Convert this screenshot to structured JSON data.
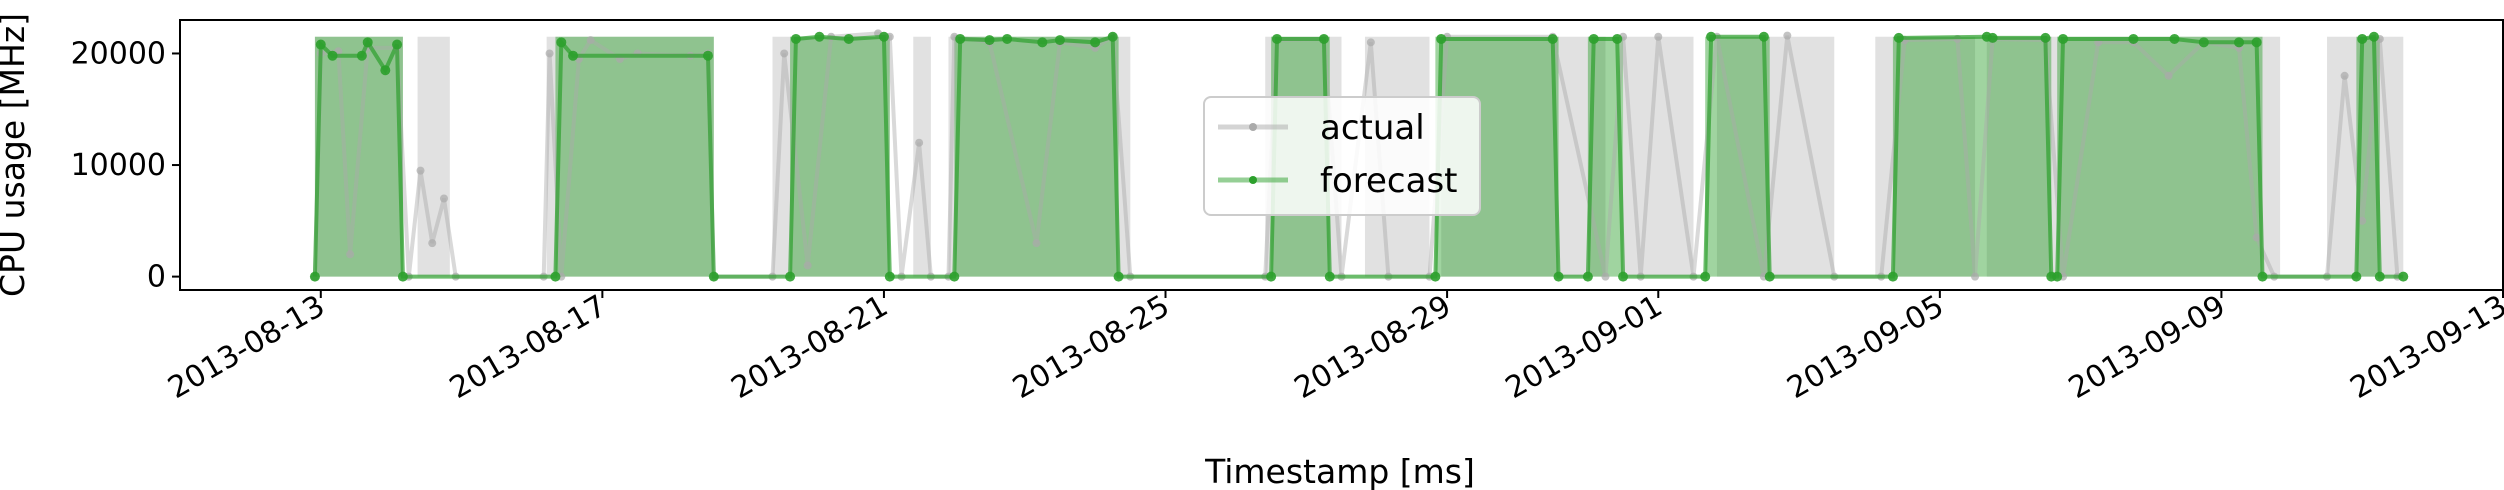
{
  "chart_data": {
    "type": "line",
    "title": "",
    "xlabel": "Timestamp [ms]",
    "ylabel": "CPU usage [MHz]",
    "ylim": [
      -1200,
      23000
    ],
    "xlim": [
      "2013-08-11T00:00",
      "2013-09-13T00:00"
    ],
    "yticks": [
      0,
      10000,
      20000
    ],
    "ytick_labels": [
      "0",
      "10000",
      "20000"
    ],
    "xtick_labels": [
      "2013-08-13",
      "2013-08-17",
      "2013-08-21",
      "2013-08-25",
      "2013-08-29",
      "2013-09-01",
      "2013-09-05",
      "2013-09-09",
      "2013-09-13"
    ],
    "xticks": [
      "2013-08-13T00:00",
      "2013-08-17T00:00",
      "2013-08-21T00:00",
      "2013-08-25T00:00",
      "2013-08-29T00:00",
      "2013-09-01T00:00",
      "2013-09-05T00:00",
      "2013-09-09T00:00",
      "2013-09-13T00:00"
    ],
    "grid": false,
    "legend": {
      "position": "center",
      "entries": [
        "actual",
        "forecast"
      ]
    },
    "colors": {
      "actual": "#aaaaaa",
      "forecast": "#2ca02c"
    },
    "series": [
      {
        "name": "actual",
        "points": [
          [
            "2013-08-12T22:00",
            0
          ],
          [
            "2013-08-13T00:00",
            20000
          ],
          [
            "2013-08-13T06:00",
            20200
          ],
          [
            "2013-08-13T10:00",
            2000
          ],
          [
            "2013-08-13T16:00",
            20500
          ],
          [
            "2013-08-14T02:00",
            20500
          ],
          [
            "2013-08-14T06:00",
            0
          ],
          [
            "2013-08-14T10:00",
            9500
          ],
          [
            "2013-08-14T14:00",
            3000
          ],
          [
            "2013-08-14T18:00",
            7000
          ],
          [
            "2013-08-14T22:00",
            0
          ],
          [
            "2013-08-16T04:00",
            0
          ],
          [
            "2013-08-16T06:00",
            20000
          ],
          [
            "2013-08-16T10:00",
            0
          ],
          [
            "2013-08-16T16:00",
            19500
          ],
          [
            "2013-08-16T20:00",
            21200
          ],
          [
            "2013-08-17T06:00",
            19500
          ],
          [
            "2013-08-17T12:00",
            20000
          ],
          [
            "2013-08-18T06:00",
            19800
          ],
          [
            "2013-08-18T12:00",
            20000
          ],
          [
            "2013-08-18T14:00",
            0
          ],
          [
            "2013-08-19T10:00",
            0
          ],
          [
            "2013-08-19T14:00",
            20000
          ],
          [
            "2013-08-19T22:00",
            1000
          ],
          [
            "2013-08-20T06:00",
            21500
          ],
          [
            "2013-08-20T22:00",
            21800
          ],
          [
            "2013-08-21T02:00",
            21500
          ],
          [
            "2013-08-21T06:00",
            0
          ],
          [
            "2013-08-21T12:00",
            12000
          ],
          [
            "2013-08-21T16:00",
            0
          ],
          [
            "2013-08-21T22:00",
            0
          ],
          [
            "2013-08-22T00:00",
            21500
          ],
          [
            "2013-08-22T12:00",
            21000
          ],
          [
            "2013-08-23T04:00",
            3000
          ],
          [
            "2013-08-23T12:00",
            21000
          ],
          [
            "2013-08-24T00:00",
            20500
          ],
          [
            "2013-08-24T06:00",
            21500
          ],
          [
            "2013-08-24T12:00",
            0
          ],
          [
            "2013-08-26T10:00",
            0
          ],
          [
            "2013-08-26T14:00",
            21200
          ],
          [
            "2013-08-27T06:00",
            21300
          ],
          [
            "2013-08-27T12:00",
            0
          ],
          [
            "2013-08-27T22:00",
            21000
          ],
          [
            "2013-08-28T04:00",
            0
          ],
          [
            "2013-08-28T18:00",
            0
          ],
          [
            "2013-08-29T00:00",
            21500
          ],
          [
            "2013-08-30T12:00",
            21500
          ],
          [
            "2013-08-31T06:00",
            0
          ],
          [
            "2013-08-31T12:00",
            21500
          ],
          [
            "2013-08-31T18:00",
            0
          ],
          [
            "2013-09-01T00:00",
            21500
          ],
          [
            "2013-09-01T12:00",
            0
          ],
          [
            "2013-09-01T20:00",
            21500
          ],
          [
            "2013-09-02T12:00",
            0
          ],
          [
            "2013-09-02T20:00",
            21600
          ],
          [
            "2013-09-03T12:00",
            0
          ],
          [
            "2013-09-04T04:00",
            0
          ],
          [
            "2013-09-04T12:00",
            21200
          ],
          [
            "2013-09-05T06:00",
            21300
          ],
          [
            "2013-09-05T12:00",
            0
          ],
          [
            "2013-09-05T18:00",
            21300
          ],
          [
            "2013-09-06T12:00",
            21200
          ],
          [
            "2013-09-06T18:00",
            0
          ],
          [
            "2013-09-07T06:00",
            21000
          ],
          [
            "2013-09-07T18:00",
            21000
          ],
          [
            "2013-09-08T06:00",
            18000
          ],
          [
            "2013-09-08T18:00",
            21000
          ],
          [
            "2013-09-09T06:00",
            20500
          ],
          [
            "2013-09-09T12:00",
            3500
          ],
          [
            "2013-09-09T18:00",
            0
          ],
          [
            "2013-09-10T12:00",
            0
          ],
          [
            "2013-09-10T18:00",
            18000
          ],
          [
            "2013-09-11T00:00",
            5000
          ],
          [
            "2013-09-11T06:00",
            21300
          ],
          [
            "2013-09-11T12:00",
            0
          ]
        ]
      },
      {
        "name": "forecast",
        "points": [
          [
            "2013-08-12T22:00",
            0
          ],
          [
            "2013-08-13T00:00",
            20800
          ],
          [
            "2013-08-13T04:00",
            19800
          ],
          [
            "2013-08-13T14:00",
            19800
          ],
          [
            "2013-08-13T16:00",
            21000
          ],
          [
            "2013-08-13T22:00",
            18500
          ],
          [
            "2013-08-14T02:00",
            20800
          ],
          [
            "2013-08-14T04:00",
            0
          ],
          [
            "2013-08-16T08:00",
            0
          ],
          [
            "2013-08-16T10:00",
            21000
          ],
          [
            "2013-08-16T14:00",
            19800
          ],
          [
            "2013-08-18T12:00",
            19800
          ],
          [
            "2013-08-18T14:00",
            0
          ],
          [
            "2013-08-19T16:00",
            0
          ],
          [
            "2013-08-19T18:00",
            21300
          ],
          [
            "2013-08-20T02:00",
            21500
          ],
          [
            "2013-08-20T12:00",
            21300
          ],
          [
            "2013-08-21T00:00",
            21500
          ],
          [
            "2013-08-21T02:00",
            0
          ],
          [
            "2013-08-22T00:00",
            0
          ],
          [
            "2013-08-22T02:00",
            21300
          ],
          [
            "2013-08-22T12:00",
            21200
          ],
          [
            "2013-08-22T18:00",
            21300
          ],
          [
            "2013-08-23T06:00",
            21000
          ],
          [
            "2013-08-23T12:00",
            21200
          ],
          [
            "2013-08-24T00:00",
            21000
          ],
          [
            "2013-08-24T06:00",
            21500
          ],
          [
            "2013-08-24T08:00",
            0
          ],
          [
            "2013-08-26T12:00",
            0
          ],
          [
            "2013-08-26T14:00",
            21300
          ],
          [
            "2013-08-27T06:00",
            21300
          ],
          [
            "2013-08-27T08:00",
            0
          ],
          [
            "2013-08-28T20:00",
            0
          ],
          [
            "2013-08-28T22:00",
            21300
          ],
          [
            "2013-08-30T12:00",
            21300
          ],
          [
            "2013-08-30T14:00",
            0
          ],
          [
            "2013-08-31T00:00",
            0
          ],
          [
            "2013-08-31T02:00",
            21300
          ],
          [
            "2013-08-31T10:00",
            21300
          ],
          [
            "2013-08-31T12:00",
            0
          ],
          [
            "2013-09-01T16:00",
            0
          ],
          [
            "2013-09-01T18:00",
            21500
          ],
          [
            "2013-09-02T12:00",
            21500
          ],
          [
            "2013-09-02T14:00",
            0
          ],
          [
            "2013-09-04T08:00",
            0
          ],
          [
            "2013-09-04T10:00",
            21400
          ],
          [
            "2013-09-05T16:00",
            21500
          ],
          [
            "2013-09-05T18:00",
            21400
          ],
          [
            "2013-09-06T12:00",
            21400
          ],
          [
            "2013-09-06T14:00",
            0
          ],
          [
            "2013-09-06T16:00",
            0
          ],
          [
            "2013-09-06T18:00",
            21300
          ],
          [
            "2013-09-07T18:00",
            21300
          ],
          [
            "2013-09-08T08:00",
            21300
          ],
          [
            "2013-09-08T18:00",
            21000
          ],
          [
            "2013-09-09T06:00",
            21000
          ],
          [
            "2013-09-09T12:00",
            21000
          ],
          [
            "2013-09-09T14:00",
            0
          ],
          [
            "2013-09-10T22:00",
            0
          ],
          [
            "2013-09-11T00:00",
            21300
          ],
          [
            "2013-09-11T04:00",
            21500
          ],
          [
            "2013-09-11T06:00",
            0
          ],
          [
            "2013-09-11T14:00",
            0
          ]
        ]
      }
    ],
    "bands": {
      "actual": [
        [
          "2013-08-12T22:00",
          "2013-08-14T04:00"
        ],
        [
          "2013-08-14T09:00",
          "2013-08-14T20:00"
        ],
        [
          "2013-08-16T05:00",
          "2013-08-18T14:00"
        ],
        [
          "2013-08-19T10:00",
          "2013-08-21T02:00"
        ],
        [
          "2013-08-21T10:00",
          "2013-08-21T16:00"
        ],
        [
          "2013-08-21T22:00",
          "2013-08-24T12:00"
        ],
        [
          "2013-08-26T10:00",
          "2013-08-27T12:00"
        ],
        [
          "2013-08-27T20:00",
          "2013-08-28T18:00"
        ],
        [
          "2013-08-28T22:00",
          "2013-08-31T06:00"
        ],
        [
          "2013-08-31T12:00",
          "2013-09-01T12:00"
        ],
        [
          "2013-09-01T20:00",
          "2013-09-03T12:00"
        ],
        [
          "2013-09-04T02:00",
          "2013-09-05T12:00"
        ],
        [
          "2013-09-05T16:00",
          "2013-09-09T20:00"
        ],
        [
          "2013-09-10T12:00",
          "2013-09-11T14:00"
        ]
      ],
      "forecast": [
        [
          "2013-08-12T22:00",
          "2013-08-14T04:00"
        ],
        [
          "2013-08-16T08:00",
          "2013-08-18T14:00"
        ],
        [
          "2013-08-19T16:00",
          "2013-08-21T02:00"
        ],
        [
          "2013-08-22T00:00",
          "2013-08-24T08:00"
        ],
        [
          "2013-08-26T12:00",
          "2013-08-27T08:00"
        ],
        [
          "2013-08-28T20:00",
          "2013-08-30T14:00"
        ],
        [
          "2013-08-31T00:00",
          "2013-08-31T12:00"
        ],
        [
          "2013-09-01T16:00",
          "2013-09-02T14:00"
        ],
        [
          "2013-09-04T08:00",
          "2013-09-06T14:00"
        ],
        [
          "2013-09-06T16:00",
          "2013-09-09T14:00"
        ],
        [
          "2013-09-10T22:00",
          "2013-09-11T06:00"
        ]
      ]
    }
  }
}
